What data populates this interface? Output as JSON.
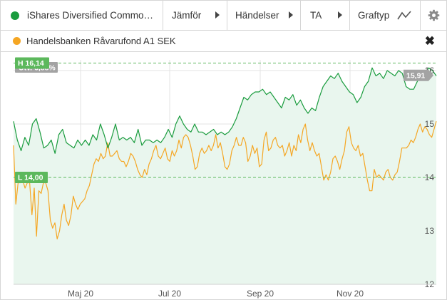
{
  "toolbar": {
    "instrument_label": "iShares Diversified Commo…",
    "instrument_color": "#1a9c3e",
    "compare_label": "Jämför",
    "events_label": "Händelser",
    "ta_label": "TA",
    "graph_type_label": "Graftyp",
    "graph_type_icon": "line-chart-icon",
    "settings_icon": "gear-icon"
  },
  "legend": {
    "series_label": "Handelsbanken Råvarufond A1 SEK",
    "series_color": "#f5a623",
    "close_icon": "close-icon",
    "close_glyph": "✖"
  },
  "badges": {
    "change": "Utv. 6,88%",
    "high": "H 16,14",
    "low": "L 14,00",
    "last": "15,91"
  },
  "chart_data": {
    "type": "line",
    "x_labels": [
      "Maj 20",
      "Jul 20",
      "Sep 20",
      "Nov 20"
    ],
    "y_ticks": [
      "16",
      "15",
      "14",
      "13",
      "12"
    ],
    "ylim": [
      12,
      16.2
    ],
    "high": 16.14,
    "low": 14.0,
    "last": 15.91,
    "grid": true,
    "colors": {
      "primary": "#1a9c3e",
      "compare": "#f5a623",
      "area_fill": "#e9f6ee",
      "badge_green": "#5cb85c",
      "badge_grey": "#a3a3a3"
    },
    "series": [
      {
        "name": "iShares Diversified Commo…",
        "values": [
          15.05,
          14.7,
          14.5,
          14.75,
          14.6,
          15.0,
          15.1,
          14.85,
          14.55,
          14.6,
          14.7,
          14.45,
          14.8,
          14.9,
          14.65,
          14.6,
          14.55,
          14.7,
          14.6,
          14.7,
          14.6,
          14.8,
          14.7,
          15.0,
          14.8,
          14.55,
          14.75,
          15.0,
          14.7,
          14.75,
          14.7,
          14.75,
          14.65,
          14.9,
          14.6,
          14.7,
          14.7,
          14.65,
          14.7,
          14.65,
          14.75,
          14.9,
          14.75,
          15.0,
          15.15,
          15.0,
          14.9,
          14.85,
          15.0,
          14.85,
          14.85,
          14.8,
          14.85,
          14.9,
          14.8,
          14.85,
          14.8,
          14.85,
          14.95,
          15.1,
          15.3,
          15.5,
          15.45,
          15.55,
          15.6,
          15.6,
          15.65,
          15.55,
          15.6,
          15.5,
          15.4,
          15.3,
          15.5,
          15.45,
          15.55,
          15.35,
          15.45,
          15.3,
          15.2,
          15.3,
          15.25,
          15.5,
          15.7,
          15.8,
          15.9,
          15.85,
          15.95,
          15.8,
          15.7,
          15.6,
          15.55,
          15.4,
          15.5,
          15.7,
          15.8,
          16.05,
          15.9,
          15.95,
          15.85,
          16.0,
          15.95,
          15.9,
          16.0,
          15.95,
          15.7,
          15.65,
          15.65,
          15.8,
          15.9,
          15.95,
          16.05,
          16.0,
          15.9
        ]
      },
      {
        "name": "Handelsbanken Råvarufond A1 SEK",
        "values": [
          14.6,
          13.5,
          13.9,
          13.9,
          13.95,
          13.8,
          13.9,
          13.9,
          13.3,
          13.8,
          12.9,
          13.75,
          13.7,
          13.9,
          13.9,
          13.75,
          13.2,
          13.05,
          13.15,
          12.85,
          13.0,
          13.3,
          13.5,
          13.2,
          13.1,
          13.3,
          13.65,
          13.5,
          13.4,
          13.5,
          13.55,
          13.6,
          13.75,
          13.85,
          14.05,
          14.25,
          14.35,
          14.3,
          14.45,
          14.35,
          14.4,
          14.65,
          14.4,
          14.4,
          14.45,
          14.5,
          14.35,
          14.3,
          14.3,
          14.2,
          14.3,
          14.45,
          14.4,
          14.3,
          14.15,
          14.05,
          14.0,
          14.15,
          14.05,
          14.25,
          14.35,
          14.5,
          14.6,
          14.4,
          14.35,
          14.45,
          14.55,
          14.35,
          14.3,
          14.5,
          14.4,
          14.5,
          14.7,
          14.55,
          14.75,
          14.8,
          14.75,
          14.6,
          14.4,
          14.15,
          14.2,
          14.45,
          14.55,
          14.45,
          14.5,
          14.6,
          14.5,
          14.6,
          14.8,
          14.55,
          14.65,
          14.45,
          14.2,
          14.15,
          14.25,
          14.5,
          14.6,
          14.75,
          14.6,
          14.6,
          14.75,
          14.65,
          14.3,
          14.4,
          14.6,
          14.45,
          14.55,
          14.2,
          14.25,
          14.7,
          14.85,
          14.5,
          14.55,
          14.7,
          14.75,
          14.6,
          14.55,
          14.6,
          14.4,
          14.5,
          14.65,
          14.4,
          14.6,
          14.5,
          14.8,
          14.65,
          14.9,
          15.0,
          14.7,
          14.5,
          14.65,
          14.5,
          14.4,
          14.45,
          14.2,
          13.95,
          14.05,
          13.95,
          14.1,
          14.35,
          14.4,
          14.3,
          14.15,
          14.35,
          14.5,
          14.85,
          14.95,
          14.65,
          14.55,
          14.5,
          14.6,
          14.4,
          14.45,
          14.2,
          13.95,
          13.75,
          13.75,
          14.15,
          14.0,
          14.05,
          14.0,
          13.95,
          14.1,
          14.15,
          14.0,
          13.95,
          14.05,
          14.1,
          14.3,
          14.55,
          14.55,
          14.55,
          14.6,
          14.7,
          14.65,
          14.75,
          14.9,
          15.0,
          14.85,
          14.95,
          14.9,
          14.8,
          14.75,
          14.9,
          15.05
        ]
      }
    ]
  }
}
